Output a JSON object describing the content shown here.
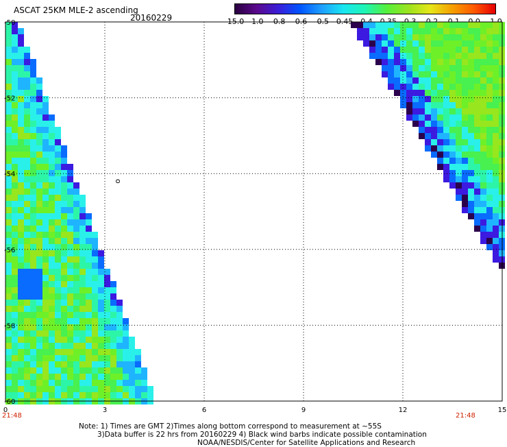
{
  "header": {
    "title": "ASCAT 25KM MLE-2 ascending",
    "date": "20160229"
  },
  "colorbar": {
    "labels": [
      "-15.0",
      "-1.0",
      "-0.8",
      "-0.6",
      "-0.5",
      "-0.45",
      "-0.4",
      "-0.35",
      "-0.3",
      "-0.2",
      "-0.1",
      "0.0",
      "1.0"
    ],
    "colors": [
      "#2a0040",
      "#5a0a8c",
      "#3a1ed8",
      "#0055ff",
      "#1f9fff",
      "#19e6f0",
      "#1ff5b4",
      "#55f03c",
      "#9be31e",
      "#e6e619",
      "#f5a000",
      "#ff5a00",
      "#e60000"
    ]
  },
  "map": {
    "lat_labels": [
      "-50",
      "-52",
      "-54",
      "-56",
      "-58",
      "-60"
    ],
    "lon_labels": [
      "0",
      "3",
      "6",
      "9",
      "12",
      "15"
    ],
    "time_left": "21:48",
    "time_right": "21:48",
    "time_color": "#cc2200",
    "marker": "o",
    "lat_range": [
      -60,
      -50
    ],
    "lon_range": [
      0,
      15
    ]
  },
  "footer": {
    "line1": "Note: 1) Times are GMT 2)Times along bottom correspond to measurement at ~55S",
    "line2": "3)Data buffer is 22 hrs from 20160229 4) Black wind barbs indicate possible contamination",
    "line3": "NOAA/NESDIS/Center for Satellite Applications and Research"
  }
}
